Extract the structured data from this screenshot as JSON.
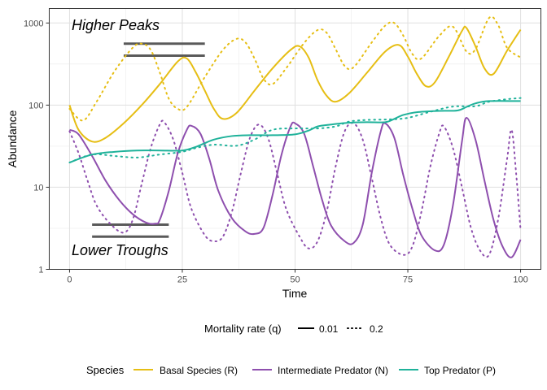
{
  "chart_data": {
    "type": "line",
    "xlabel": "Time",
    "ylabel": "Abundance",
    "xlim": [
      -4.5,
      104.5
    ],
    "ylim": [
      1,
      1500
    ],
    "y_scale": "log",
    "grid": true,
    "x_ticks": [
      0,
      25,
      50,
      75,
      100
    ],
    "x_tick_labels": [
      "0",
      "25",
      "50",
      "75",
      "100"
    ],
    "y_ticks": [
      1,
      10,
      100,
      1000
    ],
    "y_tick_labels": [
      "1",
      "10",
      "100",
      "1000"
    ],
    "annotations": [
      {
        "text": "Higher Peaks",
        "x": 0,
        "y": 860
      },
      {
        "text": "Lower Troughs",
        "x": 0,
        "y": 1.5
      }
    ],
    "reference_segments": [
      {
        "x": [
          12,
          30
        ],
        "y": 560
      },
      {
        "x": [
          12,
          30
        ],
        "y": 400
      },
      {
        "x": [
          5,
          22
        ],
        "y": 3.5
      },
      {
        "x": [
          5,
          22
        ],
        "y": 2.5
      }
    ],
    "legend_linetype": {
      "title": "Mortality rate (q)",
      "items": [
        {
          "label": "0.01",
          "dash": "solid"
        },
        {
          "label": "0.2",
          "dash": "dotted"
        }
      ]
    },
    "legend_color": {
      "title": "Species",
      "items": [
        {
          "label": "Basal Species (R)",
          "color": "#E6BE14"
        },
        {
          "label": "Intermediate Predator (N)",
          "color": "#8E4FAE"
        },
        {
          "label": "Top Predator (P)",
          "color": "#1FB29A"
        }
      ]
    },
    "legend_placement": "bottom",
    "series": [
      {
        "species": 0,
        "dash": "solid",
        "points": [
          [
            0,
            100
          ],
          [
            2,
            50
          ],
          [
            5,
            36
          ],
          [
            8,
            40
          ],
          [
            12,
            60
          ],
          [
            16,
            100
          ],
          [
            20,
            180
          ],
          [
            24,
            340
          ],
          [
            26,
            370
          ],
          [
            28,
            250
          ],
          [
            30,
            150
          ],
          [
            32,
            90
          ],
          [
            34,
            68
          ],
          [
            37,
            80
          ],
          [
            41,
            150
          ],
          [
            45,
            280
          ],
          [
            49,
            470
          ],
          [
            51,
            520
          ],
          [
            53,
            380
          ],
          [
            55,
            200
          ],
          [
            57,
            130
          ],
          [
            59,
            110
          ],
          [
            62,
            140
          ],
          [
            66,
            250
          ],
          [
            70,
            450
          ],
          [
            73,
            540
          ],
          [
            75,
            390
          ],
          [
            77,
            240
          ],
          [
            79,
            170
          ],
          [
            81,
            190
          ],
          [
            84,
            380
          ],
          [
            87,
            800
          ],
          [
            88,
            870
          ],
          [
            90,
            520
          ],
          [
            92,
            280
          ],
          [
            94,
            240
          ],
          [
            97,
            460
          ],
          [
            100,
            830
          ]
        ]
      },
      {
        "species": 0,
        "dash": "dotted",
        "points": [
          [
            0,
            90
          ],
          [
            3,
            65
          ],
          [
            6,
            110
          ],
          [
            10,
            260
          ],
          [
            14,
            500
          ],
          [
            16,
            560
          ],
          [
            18,
            470
          ],
          [
            20,
            250
          ],
          [
            22,
            120
          ],
          [
            24,
            90
          ],
          [
            26,
            95
          ],
          [
            30,
            220
          ],
          [
            34,
            470
          ],
          [
            37,
            640
          ],
          [
            39,
            580
          ],
          [
            41,
            370
          ],
          [
            43,
            210
          ],
          [
            45,
            180
          ],
          [
            48,
            280
          ],
          [
            52,
            570
          ],
          [
            55,
            820
          ],
          [
            57,
            760
          ],
          [
            59,
            480
          ],
          [
            61,
            300
          ],
          [
            63,
            290
          ],
          [
            67,
            580
          ],
          [
            70,
            930
          ],
          [
            72,
            1000
          ],
          [
            74,
            700
          ],
          [
            76,
            420
          ],
          [
            78,
            370
          ],
          [
            82,
            700
          ],
          [
            85,
            900
          ],
          [
            88,
            450
          ],
          [
            90,
            480
          ],
          [
            93,
            1150
          ],
          [
            95,
            950
          ],
          [
            97,
            500
          ],
          [
            100,
            380
          ]
        ]
      },
      {
        "species": 1,
        "dash": "solid",
        "points": [
          [
            0,
            50
          ],
          [
            2,
            44
          ],
          [
            5,
            24
          ],
          [
            8,
            12
          ],
          [
            11,
            7
          ],
          [
            14,
            4.7
          ],
          [
            17,
            3.7
          ],
          [
            19,
            3.6
          ],
          [
            20,
            4
          ],
          [
            22,
            9
          ],
          [
            24,
            26
          ],
          [
            26,
            50
          ],
          [
            27,
            56
          ],
          [
            29,
            45
          ],
          [
            31,
            22
          ],
          [
            33,
            9
          ],
          [
            36,
            4.2
          ],
          [
            39,
            2.9
          ],
          [
            41,
            2.7
          ],
          [
            43,
            3.2
          ],
          [
            45,
            8
          ],
          [
            47,
            25
          ],
          [
            49,
            55
          ],
          [
            50,
            60
          ],
          [
            52,
            45
          ],
          [
            54,
            18
          ],
          [
            56,
            7
          ],
          [
            58,
            3.4
          ],
          [
            61,
            2.2
          ],
          [
            63,
            2.1
          ],
          [
            65,
            3.5
          ],
          [
            67,
            15
          ],
          [
            69,
            48
          ],
          [
            70,
            60
          ],
          [
            72,
            40
          ],
          [
            74,
            14
          ],
          [
            76,
            5.5
          ],
          [
            78,
            2.6
          ],
          [
            81,
            1.7
          ],
          [
            83,
            2
          ],
          [
            85,
            6
          ],
          [
            87,
            36
          ],
          [
            88,
            70
          ],
          [
            90,
            38
          ],
          [
            92,
            12
          ],
          [
            94,
            4
          ],
          [
            96,
            1.9
          ],
          [
            98,
            1.4
          ],
          [
            100,
            2.3
          ]
        ]
      },
      {
        "species": 1,
        "dash": "dotted",
        "points": [
          [
            0,
            48
          ],
          [
            2,
            26
          ],
          [
            4,
            12
          ],
          [
            6,
            6
          ],
          [
            9,
            3.6
          ],
          [
            12,
            2.8
          ],
          [
            14,
            4
          ],
          [
            16,
            11
          ],
          [
            18,
            30
          ],
          [
            20,
            58
          ],
          [
            21,
            62
          ],
          [
            23,
            38
          ],
          [
            25,
            15
          ],
          [
            27,
            5.5
          ],
          [
            30,
            2.6
          ],
          [
            32,
            2.2
          ],
          [
            34,
            2.5
          ],
          [
            36,
            5
          ],
          [
            38,
            15
          ],
          [
            40,
            40
          ],
          [
            42,
            58
          ],
          [
            44,
            40
          ],
          [
            46,
            15
          ],
          [
            48,
            5.5
          ],
          [
            51,
            2.5
          ],
          [
            53,
            1.8
          ],
          [
            55,
            2.2
          ],
          [
            57,
            5
          ],
          [
            59,
            18
          ],
          [
            61,
            48
          ],
          [
            63,
            60
          ],
          [
            65,
            38
          ],
          [
            67,
            13
          ],
          [
            69,
            4.2
          ],
          [
            71,
            2
          ],
          [
            74,
            1.5
          ],
          [
            76,
            1.9
          ],
          [
            78,
            5
          ],
          [
            80,
            18
          ],
          [
            82,
            46
          ],
          [
            83,
            55
          ],
          [
            85,
            30
          ],
          [
            87,
            10
          ],
          [
            89,
            3.2
          ],
          [
            91,
            1.7
          ],
          [
            93,
            1.5
          ],
          [
            95,
            4
          ],
          [
            97,
            22
          ],
          [
            98,
            50
          ],
          [
            99,
            15
          ],
          [
            100,
            3
          ]
        ]
      },
      {
        "species": 2,
        "dash": "solid",
        "points": [
          [
            0,
            20
          ],
          [
            5,
            25
          ],
          [
            10,
            27
          ],
          [
            15,
            28
          ],
          [
            20,
            28
          ],
          [
            25,
            28
          ],
          [
            28,
            31
          ],
          [
            32,
            38
          ],
          [
            36,
            42
          ],
          [
            40,
            43
          ],
          [
            45,
            43
          ],
          [
            50,
            44
          ],
          [
            53,
            49
          ],
          [
            55,
            55
          ],
          [
            58,
            58
          ],
          [
            62,
            61
          ],
          [
            66,
            62
          ],
          [
            70,
            62
          ],
          [
            72,
            68
          ],
          [
            74,
            76
          ],
          [
            77,
            82
          ],
          [
            82,
            85
          ],
          [
            86,
            86
          ],
          [
            88,
            95
          ],
          [
            90,
            105
          ],
          [
            93,
            112
          ],
          [
            100,
            112
          ]
        ]
      },
      {
        "species": 2,
        "dash": "dotted",
        "points": [
          [
            0,
            20
          ],
          [
            5,
            25
          ],
          [
            10,
            24
          ],
          [
            15,
            23
          ],
          [
            20,
            25
          ],
          [
            25,
            27
          ],
          [
            28,
            30
          ],
          [
            32,
            33
          ],
          [
            37,
            32
          ],
          [
            41,
            38
          ],
          [
            45,
            50
          ],
          [
            50,
            52
          ],
          [
            55,
            52
          ],
          [
            59,
            55
          ],
          [
            62,
            63
          ],
          [
            66,
            66
          ],
          [
            71,
            67
          ],
          [
            75,
            70
          ],
          [
            80,
            83
          ],
          [
            85,
            96
          ],
          [
            90,
            97
          ],
          [
            93,
            110
          ],
          [
            97,
            118
          ],
          [
            100,
            122
          ]
        ]
      }
    ]
  }
}
